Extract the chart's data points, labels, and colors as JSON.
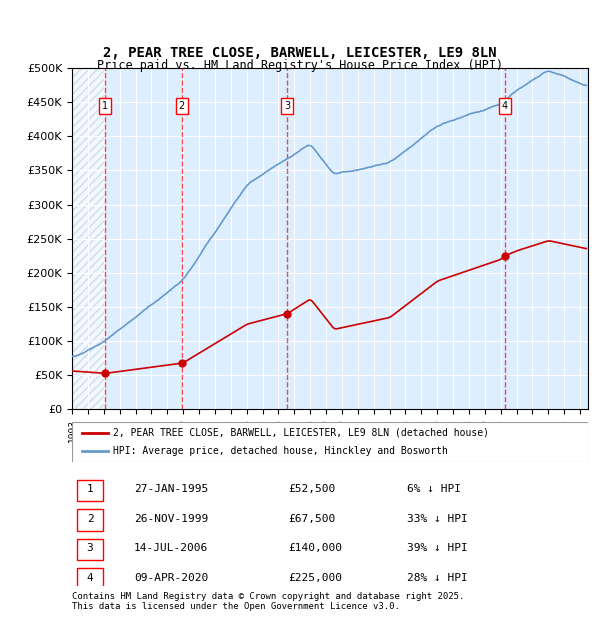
{
  "title": "2, PEAR TREE CLOSE, BARWELL, LEICESTER, LE9 8LN",
  "subtitle": "Price paid vs. HM Land Registry's House Price Index (HPI)",
  "sale_dates_num": [
    1995.07,
    1999.9,
    2006.54,
    2020.27
  ],
  "sale_prices": [
    52500,
    67500,
    140000,
    225000
  ],
  "sale_labels": [
    "1",
    "2",
    "3",
    "4"
  ],
  "sale_info": [
    [
      "1",
      "27-JAN-1995",
      "£52,500",
      "6% ↓ HPI"
    ],
    [
      "2",
      "26-NOV-1999",
      "£67,500",
      "33% ↓ HPI"
    ],
    [
      "3",
      "14-JUL-2006",
      "£140,000",
      "39% ↓ HPI"
    ],
    [
      "4",
      "09-APR-2020",
      "£225,000",
      "28% ↓ HPI"
    ]
  ],
  "legend_line1": "2, PEAR TREE CLOSE, BARWELL, LEICESTER, LE9 8LN (detached house)",
  "legend_line2": "HPI: Average price, detached house, Hinckley and Bosworth",
  "footer1": "Contains HM Land Registry data © Crown copyright and database right 2025.",
  "footer2": "This data is licensed under the Open Government Licence v3.0.",
  "ylim": [
    0,
    500000
  ],
  "xlim_start": 1993.0,
  "xlim_end": 2025.5,
  "hatch_end": 1995.07,
  "line_color_red": "#cc0000",
  "line_color_blue": "#6699cc",
  "bg_color": "#ddeeff",
  "hatch_color": "#bbccdd"
}
